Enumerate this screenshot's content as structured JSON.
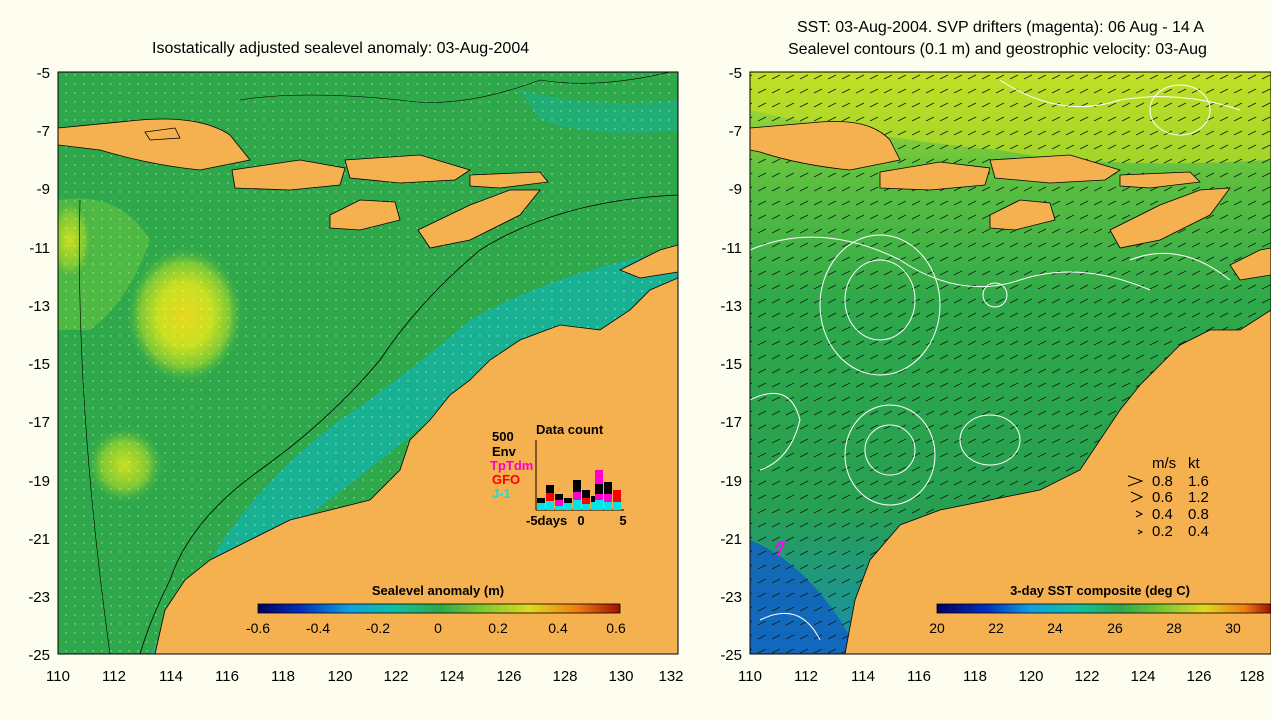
{
  "left_panel": {
    "title": "Isostatically adjusted sealevel anomaly: 03-Aug-2004",
    "x_ticks": [
      "110",
      "112",
      "114",
      "116",
      "118",
      "120",
      "122",
      "124",
      "126",
      "128",
      "130",
      "132"
    ],
    "y_ticks": [
      "-5",
      "-7",
      "-9",
      "-11",
      "-13",
      "-15",
      "-17",
      "-19",
      "-21",
      "-23",
      "-25"
    ],
    "colorbar": {
      "label": "Sealevel anomaly (m)",
      "ticks": [
        "-0.6",
        "-0.4",
        "-0.2",
        "0",
        "0.2",
        "0.4",
        "0.6"
      ]
    },
    "data_count": {
      "title": "Data count",
      "max_label": "500",
      "legend": [
        "Env",
        "TpTdm",
        "GFO",
        "J-1"
      ],
      "legend_colors": [
        "#000000",
        "#ff00cc",
        "#ff0000",
        "#00e5e5"
      ],
      "x_labels": [
        "-5days",
        "0",
        "5"
      ]
    }
  },
  "right_panel": {
    "title_line1": "SST: 03-Aug-2004. SVP drifters (magenta): 06 Aug - 14 A",
    "title_line2": "Sealevel contours (0.1 m) and geostrophic velocity: 03-Aug",
    "x_ticks": [
      "110",
      "112",
      "114",
      "116",
      "118",
      "120",
      "122",
      "124",
      "126",
      "128"
    ],
    "y_ticks": [
      "-5",
      "-7",
      "-9",
      "-11",
      "-13",
      "-15",
      "-17",
      "-19",
      "-21",
      "-23",
      "-25"
    ],
    "colorbar": {
      "label": "3-day SST composite (deg C)",
      "ticks": [
        "20",
        "22",
        "24",
        "26",
        "28",
        "30"
      ]
    },
    "velocity_legend": {
      "header_ms": "m/s",
      "header_kt": "kt",
      "rows": [
        {
          "ms": "0.8",
          "kt": "1.6"
        },
        {
          "ms": "0.6",
          "kt": "1.2"
        },
        {
          "ms": "0.4",
          "kt": "0.8"
        },
        {
          "ms": "0.2",
          "kt": "0.4"
        }
      ]
    }
  },
  "colors": {
    "ocean_green": "#2ea84a",
    "land": "#f5b050",
    "teal": "#14b3a0",
    "background": "#fdfdf0"
  }
}
